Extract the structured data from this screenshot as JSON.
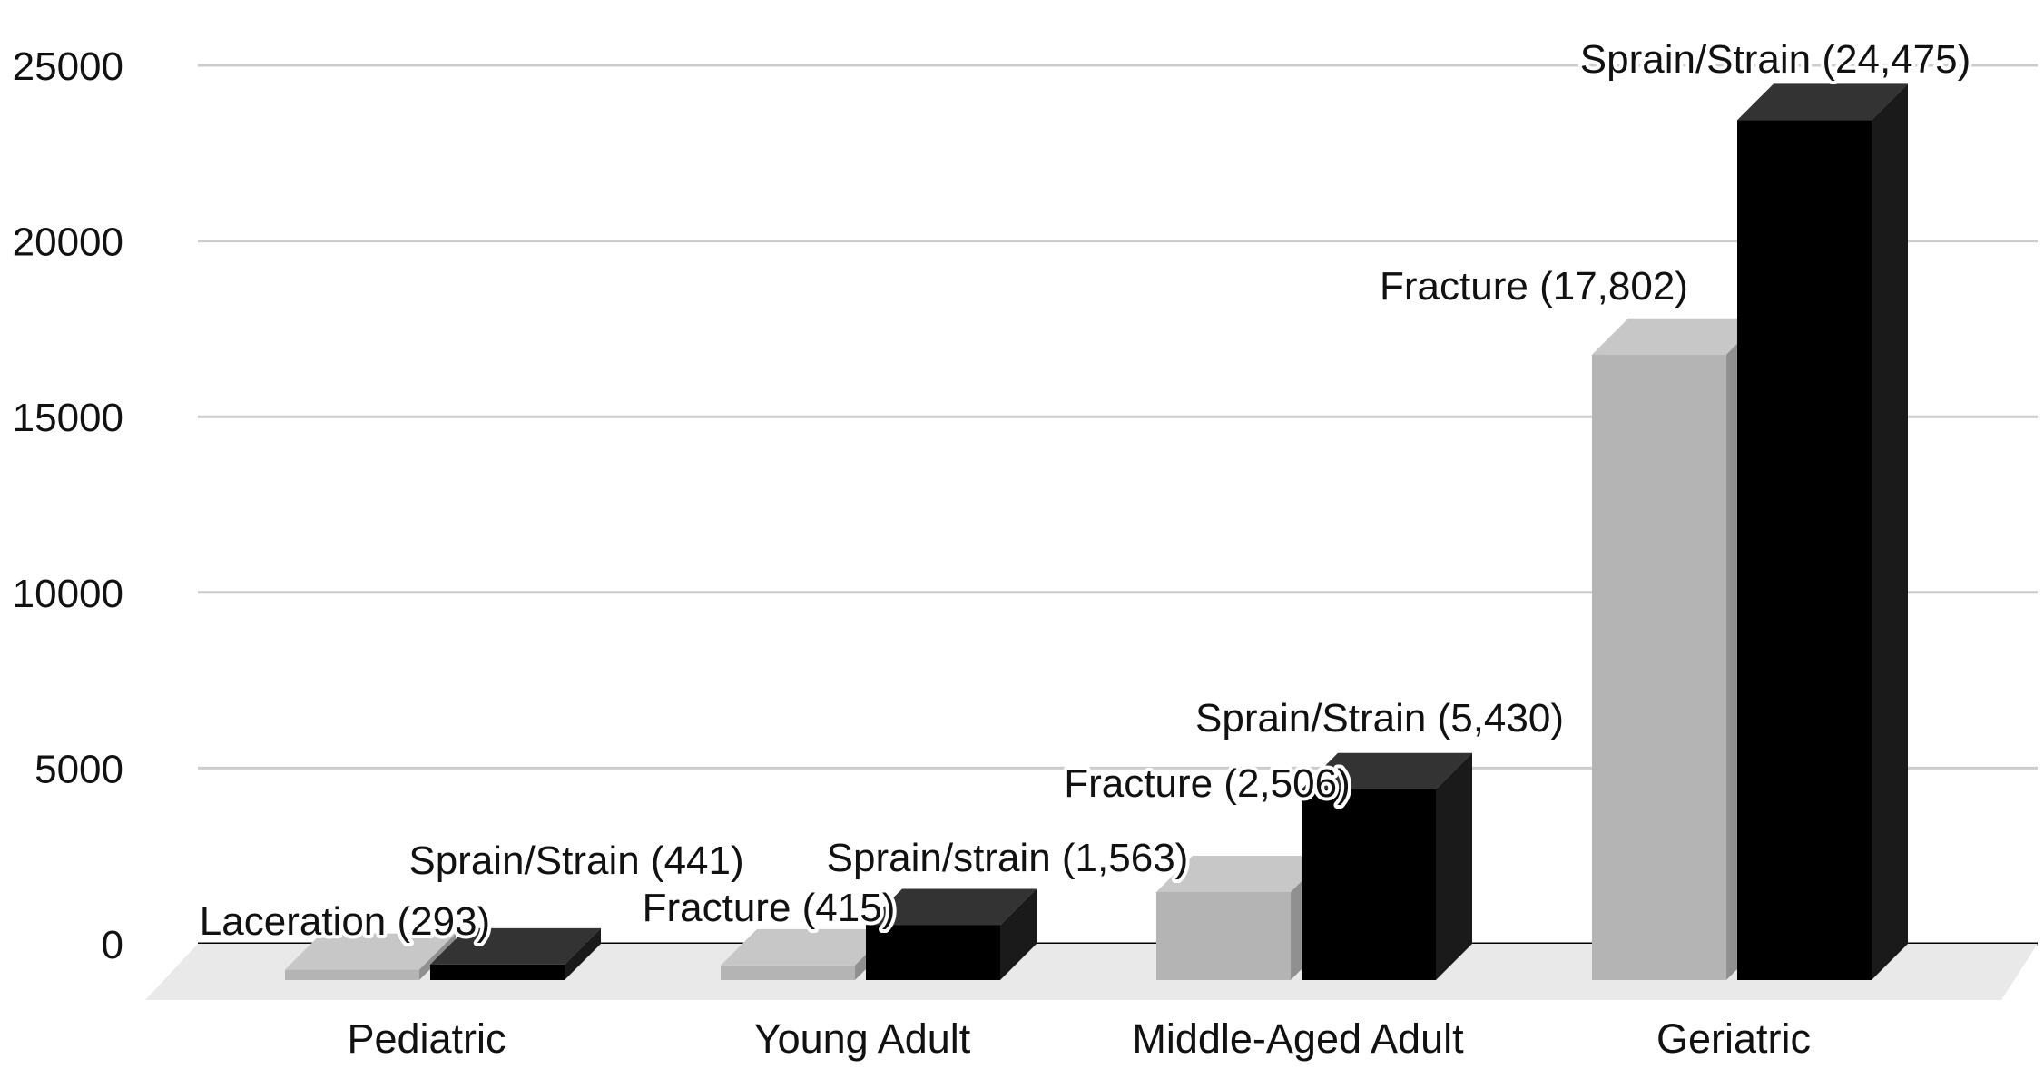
{
  "chart_data": {
    "type": "bar",
    "categories": [
      "Pediatric",
      "Young Adult",
      "Middle-Aged Adult",
      "Geriatric"
    ],
    "series": [
      {
        "values": [
          293,
          415,
          2506,
          17802
        ],
        "color": "#b4b4b4"
      },
      {
        "values": [
          441,
          1563,
          5430,
          24475
        ],
        "color": "#000000"
      }
    ],
    "data_labels": [
      [
        "Laceration (293)",
        "Sprain/Strain (441)"
      ],
      [
        "Fracture (415)",
        "Sprain/strain (1,563)"
      ],
      [
        "Fracture (2,506)",
        "Sprain/Strain (5,430)"
      ],
      [
        "Fracture (17,802)",
        "Sprain/Strain (24,475)"
      ]
    ],
    "y_ticks": [
      "0",
      "5000",
      "10000",
      "15000",
      "20000",
      "25000"
    ],
    "ylim": [
      0,
      25000
    ],
    "grid": true,
    "style": "3d",
    "legend": "none"
  }
}
